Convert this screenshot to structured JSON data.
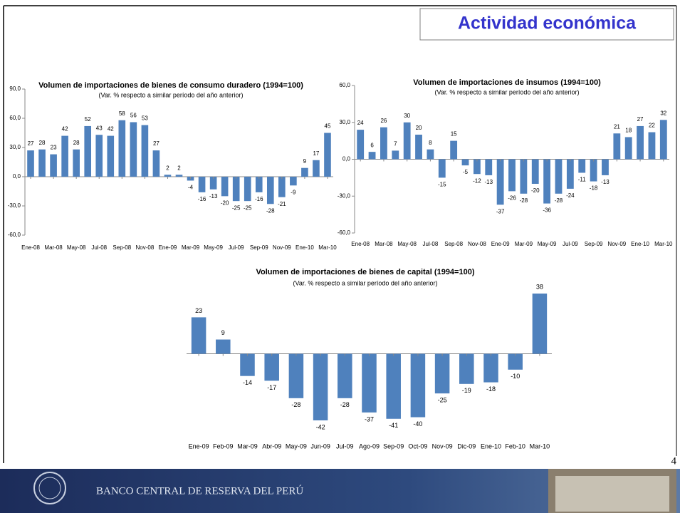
{
  "header": {
    "title": "Actividad económica"
  },
  "page_number": "4",
  "footer": {
    "text": "BANCO CENTRAL DE RESERVA DEL PERÚ"
  },
  "chart_data": [
    {
      "type": "bar",
      "title": "Volumen de importaciones de bienes de consumo duradero (1994=100)",
      "subtitle": "(Var. % respecto a similar período del año anterior)",
      "categories": [
        "Ene-08",
        null,
        "Mar-08",
        null,
        "May-08",
        null,
        "Jul-08",
        null,
        "Sep-08",
        null,
        "Nov-08",
        null,
        "Ene-09",
        null,
        "Mar-09",
        null,
        "May-09",
        null,
        "Jul-09",
        null,
        "Sep-09",
        null,
        "Nov-09",
        null,
        "Ene-10",
        null,
        "Mar-10"
      ],
      "values": [
        27,
        28,
        23,
        42,
        28,
        52,
        43,
        42,
        58,
        56,
        53,
        27,
        2,
        2,
        -4,
        -16,
        -13,
        -20,
        -25,
        -25,
        -16,
        -28,
        -21,
        -9,
        9,
        17,
        45
      ],
      "color": "#4f81bd",
      "ylim": [
        -60,
        90
      ],
      "yticks": [
        {
          "value": -60,
          "label": "-60,0"
        },
        {
          "value": -30,
          "label": "-30,0"
        },
        {
          "value": 0,
          "label": "0,0"
        },
        {
          "value": 30,
          "label": "30,0"
        },
        {
          "value": 60,
          "label": "60,0"
        },
        {
          "value": 90,
          "label": "90,0"
        }
      ]
    },
    {
      "type": "bar",
      "title": "Volumen de importaciones de insumos (1994=100)",
      "subtitle": "(Var. % respecto a similar período del año anterior)",
      "categories": [
        "Ene-08",
        null,
        "Mar-08",
        null,
        "May-08",
        null,
        "Jul-08",
        null,
        "Sep-08",
        null,
        "Nov-08",
        null,
        "Ene-09",
        null,
        "Mar-09",
        null,
        "May-09",
        null,
        "Jul-09",
        null,
        "Sep-09",
        null,
        "Nov-09",
        null,
        "Ene-10",
        null,
        "Mar-10"
      ],
      "values": [
        24,
        6,
        26,
        7,
        30,
        20,
        8,
        -15,
        15,
        -5,
        -12,
        -13,
        -37,
        -26,
        -28,
        -20,
        -36,
        -28,
        -24,
        -11,
        -18,
        -13,
        21,
        18,
        27,
        22,
        32
      ],
      "color": "#4f81bd",
      "ylim": [
        -60,
        60
      ],
      "yticks": [
        {
          "value": -60,
          "label": "-60,0"
        },
        {
          "value": -30,
          "label": "-30,0"
        },
        {
          "value": 0,
          "label": "0,0"
        },
        {
          "value": 30,
          "label": "30,0"
        },
        {
          "value": 60,
          "label": "60,0"
        }
      ]
    },
    {
      "type": "bar",
      "title": "Volumen de importaciones de bienes de capital (1994=100)",
      "subtitle": "(Var. % respecto a similar período del año anterior)",
      "categories": [
        "Ene-09",
        "Feb-09",
        "Mar-09",
        "Abr-09",
        "May-09",
        "Jun-09",
        "Jul-09",
        "Ago-09",
        "Sep-09",
        "Oct-09",
        "Nov-09",
        "Dic-09",
        "Ene-10",
        "Feb-10",
        "Mar-10"
      ],
      "values": [
        23,
        9,
        -14,
        -17,
        -28,
        -42,
        -28,
        -37,
        -41,
        -40,
        -25,
        -19,
        -18,
        -10,
        38
      ],
      "color": "#4f81bd"
    }
  ]
}
